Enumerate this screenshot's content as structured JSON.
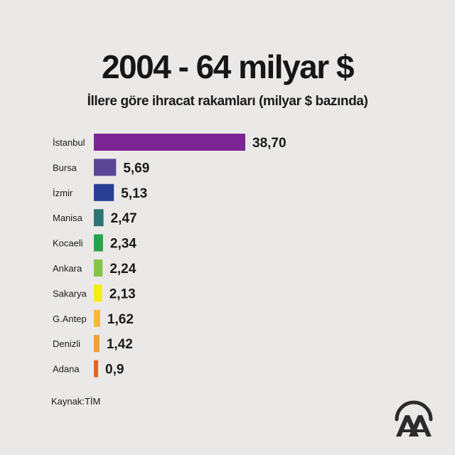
{
  "title": "2004 - 64 milyar $",
  "subtitle": "İllere göre ihracat rakamları (milyar $ bazında)",
  "source": "Kaynak:TİM",
  "logo_icon": "anadolu-agency-logo",
  "chart_data": {
    "type": "bar",
    "orientation": "horizontal",
    "title": "2004 - 64 milyar $",
    "subtitle": "İllere göre ihracat rakamları (milyar $ bazında)",
    "categories": [
      "İstanbul",
      "Bursa",
      "İzmir",
      "Manisa",
      "Kocaeli",
      "Ankara",
      "Sakarya",
      "G.Antep",
      "Denizli",
      "Adana"
    ],
    "values": [
      38.7,
      5.69,
      5.13,
      2.47,
      2.34,
      2.24,
      2.13,
      1.62,
      1.42,
      0.9
    ],
    "value_labels": [
      "38,70",
      "5,69",
      "5,13",
      "2,47",
      "2,34",
      "2,24",
      "2,13",
      "1,62",
      "1,42",
      "0,9"
    ],
    "colors": [
      "#7b2494",
      "#5b4696",
      "#283f93",
      "#2d7474",
      "#25a24a",
      "#86c449",
      "#f5ec1c",
      "#f6b937",
      "#f0a032",
      "#e86326"
    ],
    "xlim": [
      0,
      38.7
    ],
    "grid": false,
    "legend": "none"
  }
}
